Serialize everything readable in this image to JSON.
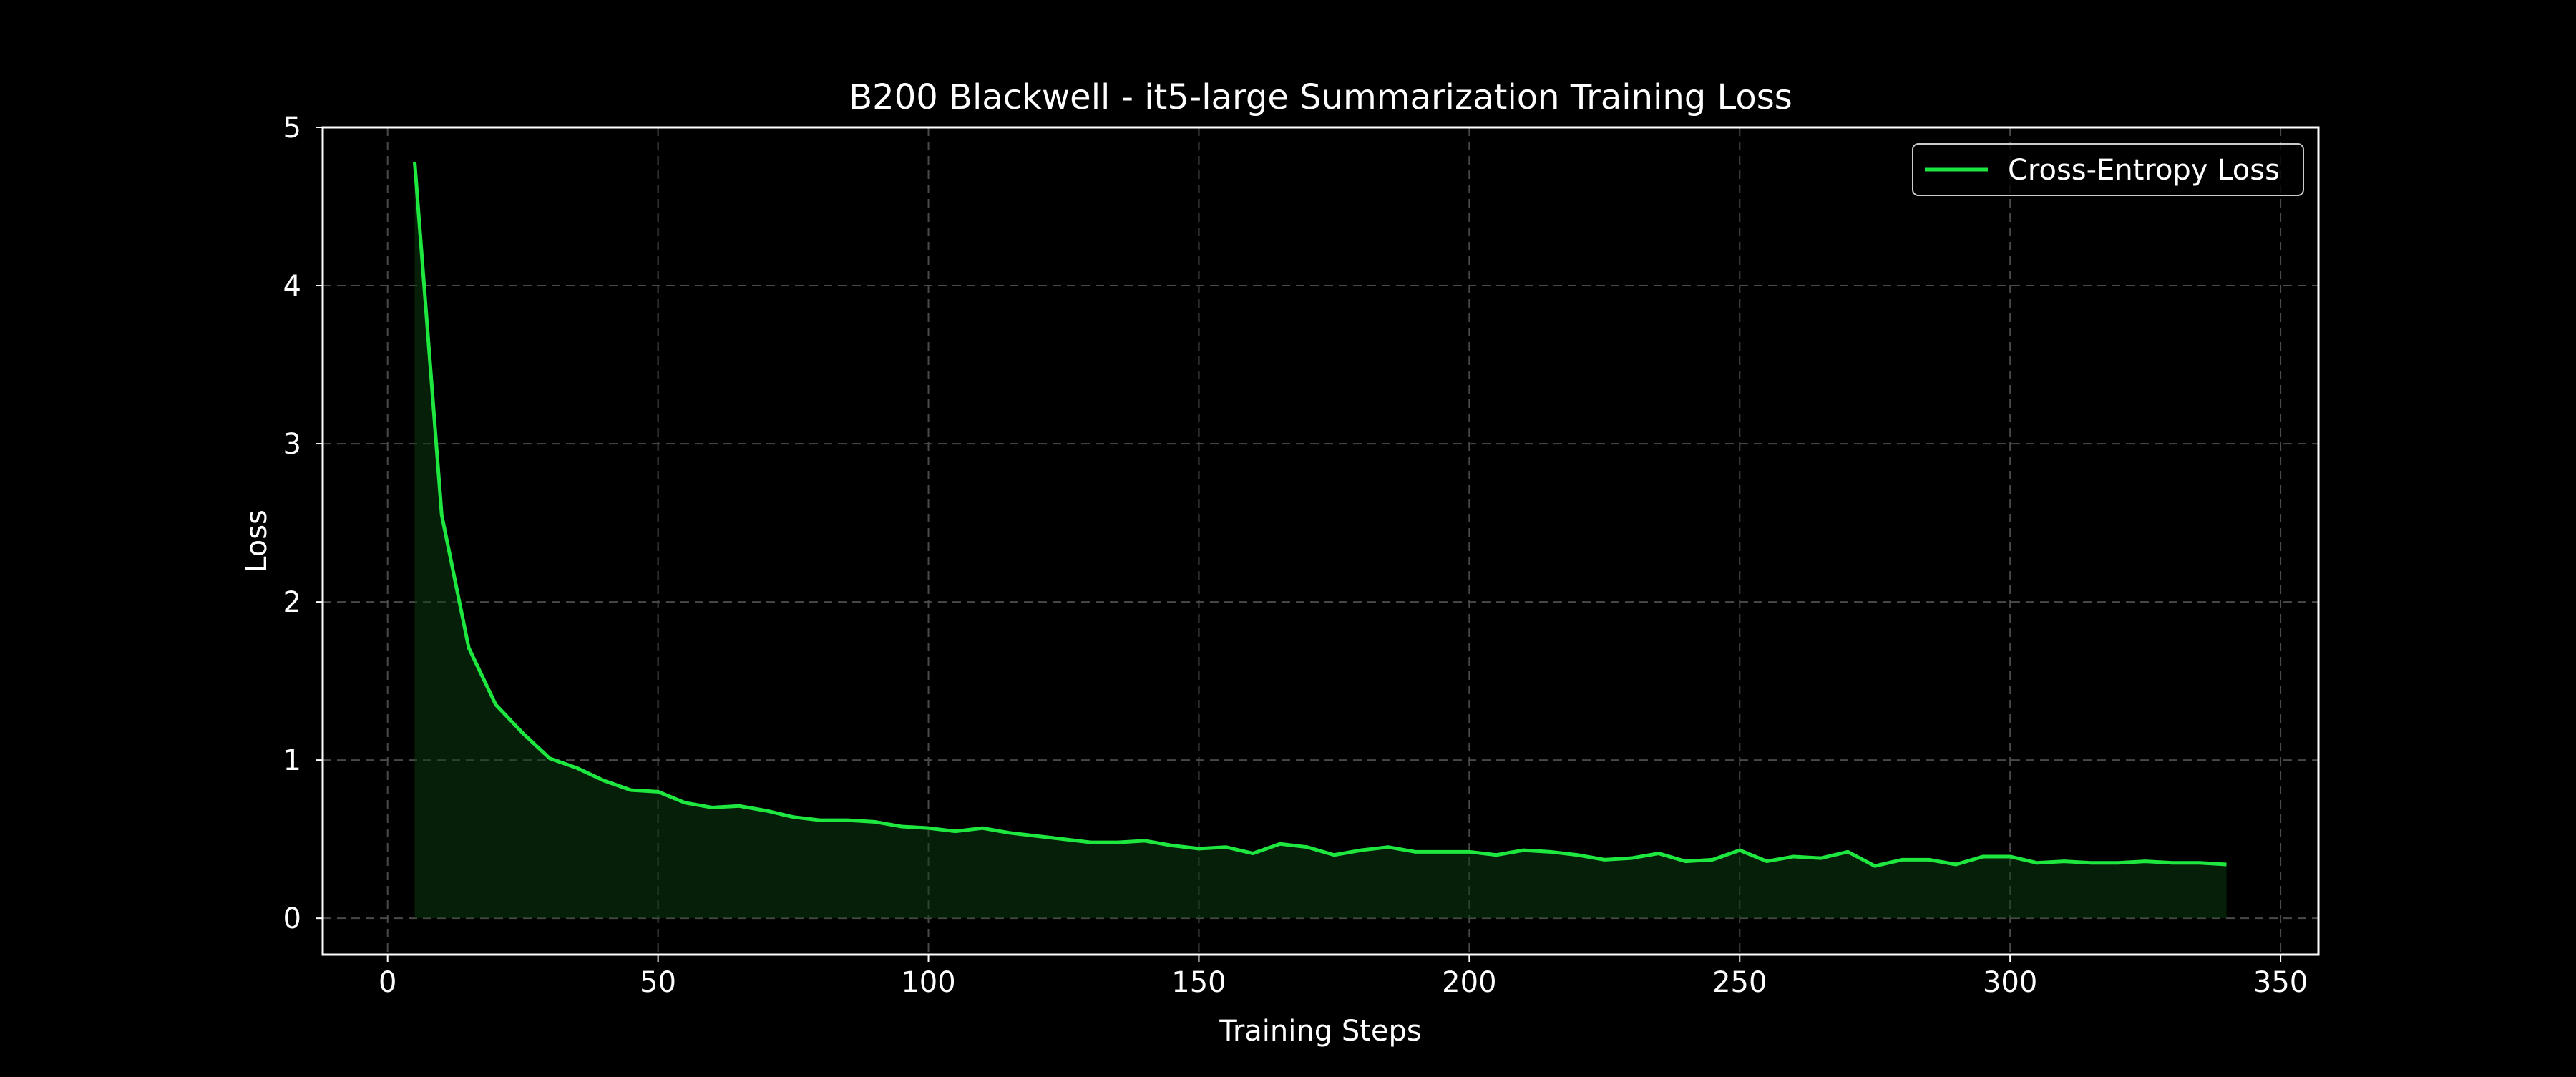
{
  "chart_data": {
    "type": "area",
    "title": "B200 Blackwell - it5-large Summarization Training Loss",
    "xlabel": "Training Steps",
    "ylabel": "Loss",
    "xlim": [
      -12,
      357
    ],
    "ylim": [
      -0.23,
      5
    ],
    "xticks": [
      0,
      50,
      100,
      150,
      200,
      250,
      300,
      350
    ],
    "yticks": [
      0,
      1,
      2,
      3,
      4,
      5
    ],
    "grid": true,
    "grid_style": "dashed",
    "legend_position": "top-right",
    "background_color": "#000000",
    "series": [
      {
        "name": "Cross-Entropy Loss",
        "color": "#1ee83f",
        "fill_color": "#0b3d12",
        "x": [
          5,
          10,
          15,
          20,
          25,
          30,
          35,
          40,
          45,
          50,
          55,
          60,
          65,
          70,
          75,
          80,
          85,
          90,
          95,
          100,
          105,
          110,
          115,
          120,
          125,
          130,
          135,
          140,
          145,
          150,
          155,
          160,
          165,
          170,
          175,
          180,
          185,
          190,
          195,
          200,
          205,
          210,
          215,
          220,
          225,
          230,
          235,
          240,
          245,
          250,
          255,
          260,
          265,
          270,
          275,
          280,
          285,
          290,
          295,
          300,
          305,
          310,
          315,
          320,
          325,
          330,
          335,
          340
        ],
        "y": [
          4.78,
          2.55,
          1.71,
          1.35,
          1.17,
          1.01,
          0.95,
          0.87,
          0.81,
          0.8,
          0.73,
          0.7,
          0.71,
          0.68,
          0.64,
          0.62,
          0.62,
          0.61,
          0.58,
          0.57,
          0.55,
          0.57,
          0.54,
          0.52,
          0.5,
          0.48,
          0.48,
          0.49,
          0.46,
          0.44,
          0.45,
          0.41,
          0.47,
          0.45,
          0.4,
          0.43,
          0.45,
          0.42,
          0.42,
          0.42,
          0.4,
          0.43,
          0.42,
          0.4,
          0.37,
          0.38,
          0.41,
          0.36,
          0.37,
          0.43,
          0.36,
          0.39,
          0.38,
          0.42,
          0.33,
          0.37,
          0.37,
          0.34,
          0.39,
          0.39,
          0.35,
          0.36,
          0.35,
          0.35,
          0.36,
          0.35,
          0.35,
          0.34
        ]
      }
    ]
  }
}
